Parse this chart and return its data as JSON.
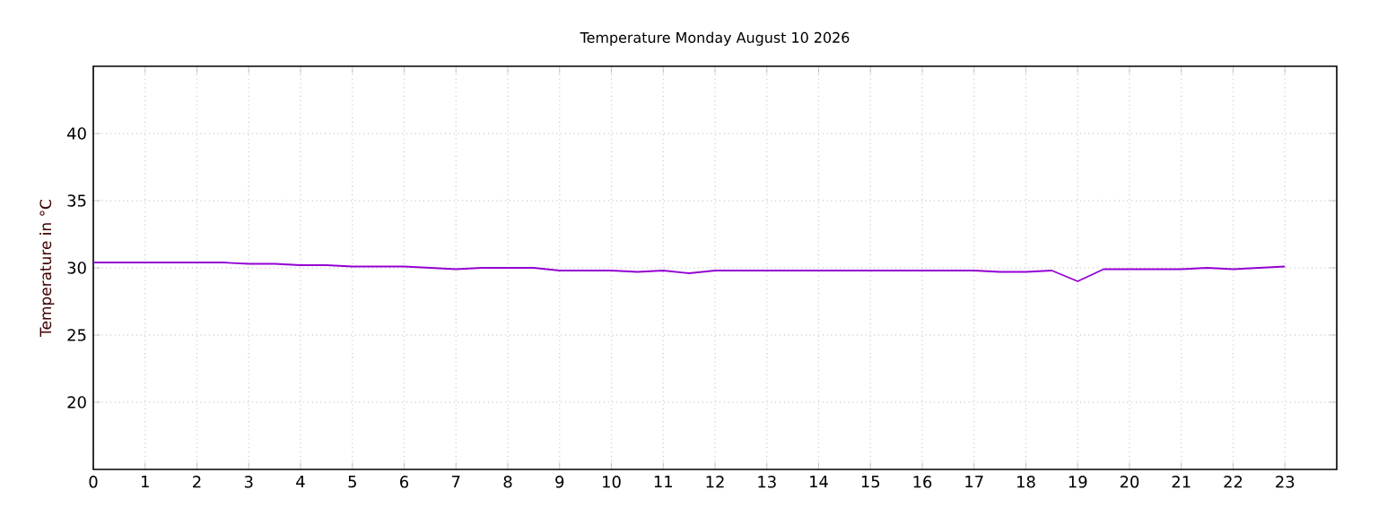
{
  "chart_data": {
    "type": "line",
    "title": "Temperature Monday August 10 2026",
    "ylabel": "Temperature in °C",
    "x": [
      0,
      0.5,
      1,
      1.5,
      2,
      2.5,
      3,
      3.5,
      4,
      4.5,
      5,
      5.5,
      6,
      6.5,
      7,
      7.5,
      8,
      8.5,
      9,
      9.5,
      10,
      10.5,
      11,
      11.5,
      12,
      12.5,
      13,
      13.5,
      14,
      14.5,
      15,
      15.5,
      16,
      16.5,
      17,
      17.5,
      18,
      18.5,
      19,
      19.5,
      20,
      20.5,
      21,
      21.5,
      22,
      22.5,
      23
    ],
    "series": [
      {
        "color": "#9400d3",
        "values": [
          30.4,
          30.4,
          30.4,
          30.4,
          30.4,
          30.4,
          30.3,
          30.3,
          30.2,
          30.2,
          30.1,
          30.1,
          30.1,
          30.0,
          29.9,
          30.0,
          30.0,
          30.0,
          29.8,
          29.8,
          29.8,
          29.7,
          29.8,
          29.6,
          29.8,
          29.8,
          29.8,
          29.8,
          29.8,
          29.8,
          29.8,
          29.8,
          29.8,
          29.8,
          29.8,
          29.7,
          29.7,
          29.8,
          29.0,
          29.9,
          29.9,
          29.9,
          29.9,
          30.0,
          29.9,
          30.0,
          30.1
        ]
      }
    ],
    "xlim": [
      0,
      24
    ],
    "ylim": [
      15,
      45
    ],
    "xticks": [
      0,
      1,
      2,
      3,
      4,
      5,
      6,
      7,
      8,
      9,
      10,
      11,
      12,
      13,
      14,
      15,
      16,
      17,
      18,
      19,
      20,
      21,
      22,
      23
    ],
    "yticks": [
      20,
      25,
      30,
      35,
      40
    ],
    "grid": true,
    "line_style": "solid",
    "marker": "none"
  }
}
